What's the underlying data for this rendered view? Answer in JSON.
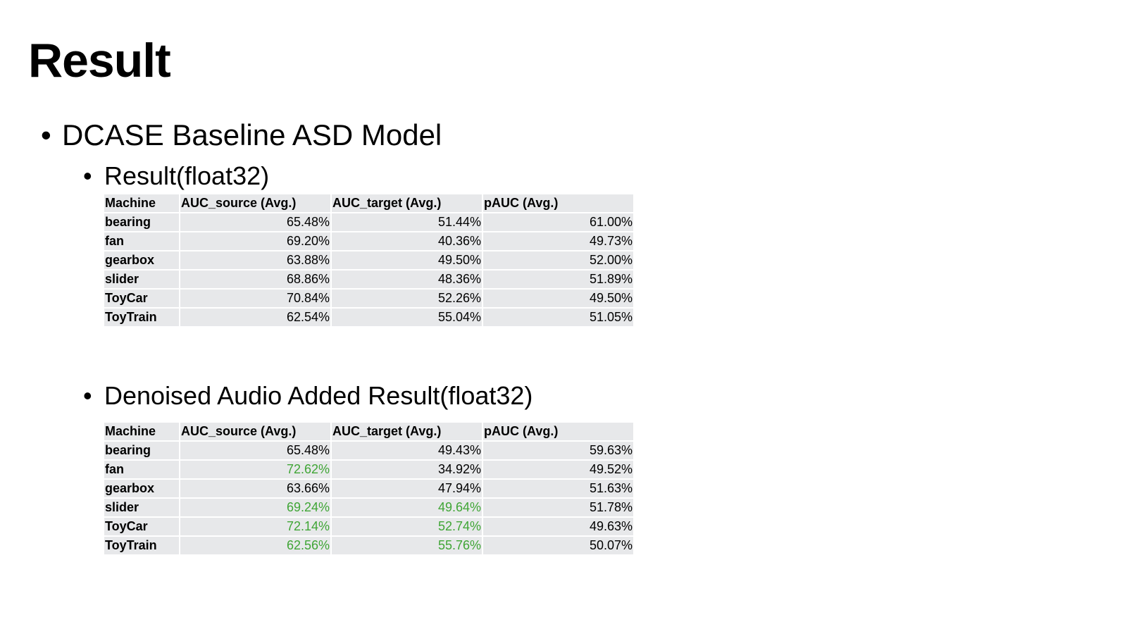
{
  "slide": {
    "title": "Result",
    "bullet_main": "DCASE Baseline ASD Model",
    "bullet_bullet": "•"
  },
  "section1": {
    "heading": "Result(float32)",
    "headers": [
      "Machine",
      "AUC_source (Avg.)",
      "AUC_target (Avg.)",
      "pAUC (Avg.)"
    ],
    "rows": [
      {
        "machine": "bearing",
        "auc_source": "65.48%",
        "auc_target": "51.44%",
        "pauc": "61.00%"
      },
      {
        "machine": "fan",
        "auc_source": "69.20%",
        "auc_target": "40.36%",
        "pauc": "49.73%"
      },
      {
        "machine": "gearbox",
        "auc_source": "63.88%",
        "auc_target": "49.50%",
        "pauc": "52.00%"
      },
      {
        "machine": "slider",
        "auc_source": "68.86%",
        "auc_target": "48.36%",
        "pauc": "51.89%"
      },
      {
        "machine": "ToyCar",
        "auc_source": "70.84%",
        "auc_target": "52.26%",
        "pauc": "49.50%"
      },
      {
        "machine": "ToyTrain",
        "auc_source": "62.54%",
        "auc_target": "55.04%",
        "pauc": "51.05%"
      }
    ]
  },
  "section2": {
    "heading": "Denoised Audio Added Result(float32)",
    "headers": [
      "Machine",
      "AUC_source (Avg.)",
      "AUC_target (Avg.)",
      "pAUC (Avg.)"
    ],
    "rows": [
      {
        "machine": "bearing",
        "auc_source": "65.48%",
        "auc_target": "49.43%",
        "pauc": "59.63%"
      },
      {
        "machine": "fan",
        "auc_source": "72.62%",
        "auc_target": "34.92%",
        "pauc": "49.52%"
      },
      {
        "machine": "gearbox",
        "auc_source": "63.66%",
        "auc_target": "47.94%",
        "pauc": "51.63%"
      },
      {
        "machine": "slider",
        "auc_source": "69.24%",
        "auc_target": "49.64%",
        "pauc": "51.78%"
      },
      {
        "machine": "ToyCar",
        "auc_source": "72.14%",
        "auc_target": "52.74%",
        "pauc": "49.63%"
      },
      {
        "machine": "ToyTrain",
        "auc_source": "62.56%",
        "auc_target": "55.76%",
        "pauc": "50.07%"
      }
    ],
    "highlight_color": "#3fa535"
  },
  "colors": {
    "cell_background": "#e7e8ea",
    "improved_value": "#3fa535",
    "text": "#000000"
  }
}
